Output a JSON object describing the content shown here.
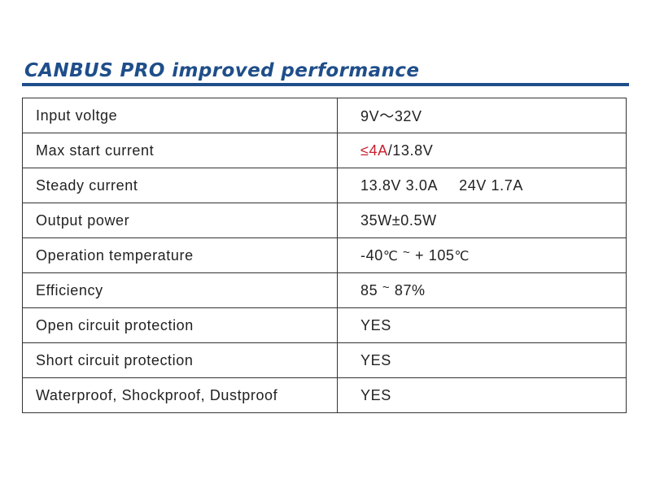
{
  "header": {
    "title": "CANBUS PRO improved performance",
    "accent_color": "#1f4e8a"
  },
  "specs": {
    "rows": [
      {
        "label": "Input voltge",
        "value": "9V～32V"
      },
      {
        "label": "Max start current",
        "value_red": "≤4A",
        "value_rest": "/13.8V"
      },
      {
        "label": "Steady current",
        "value_a": "13.8V 3.0A",
        "value_b": "24V 1.7A"
      },
      {
        "label": "Output power",
        "value": "35W±0.5W"
      },
      {
        "label": "Operation temperature",
        "value_a": "-40",
        "unit_a": "℃",
        "sep": "~",
        "value_b": " + 105",
        "unit_b": "℃"
      },
      {
        "label": "Efficiency",
        "value_a": "85",
        "sep": "~",
        "value_b": "87%"
      },
      {
        "label": "Open circuit protection",
        "value": "YES"
      },
      {
        "label": "Short circuit protection",
        "value": "YES"
      },
      {
        "label": "Waterproof, Shockproof, Dustproof",
        "value": "YES"
      }
    ],
    "highlight_color": "#c8202f",
    "text_color": "#222222"
  }
}
